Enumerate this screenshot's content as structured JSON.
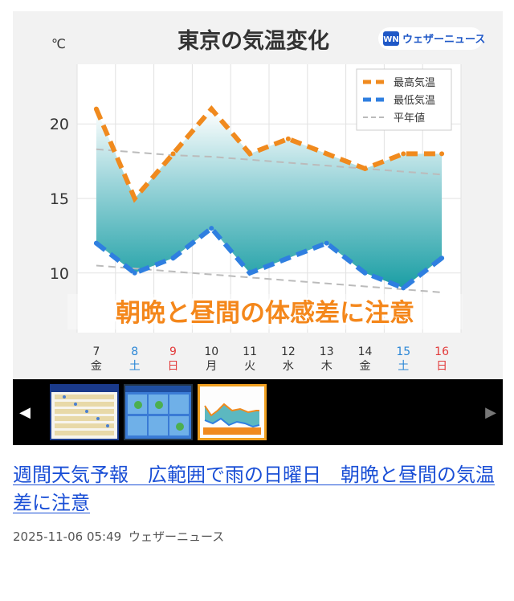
{
  "article": {
    "title": "週間天気予報　広範囲で雨の日曜日　朝晩と昼間の気温差に注意",
    "date": "2025-11-06 05:49",
    "source": "ウェザーニュース"
  },
  "gallery": {
    "prev_icon": "triangle-left",
    "next_icon": "triangle-right",
    "thumbnails": [
      {
        "name": "weekly-table"
      },
      {
        "name": "weather-maps"
      },
      {
        "name": "temperature-chart",
        "selected": true,
        "caption": "朝晩と昼間の体感差に注意"
      }
    ]
  },
  "chart_data": {
    "type": "line",
    "title": "東京の気温変化",
    "brand": "ウェザーニュース",
    "brand_logo": "WN",
    "ylabel": "℃",
    "ylim": [
      6,
      24
    ],
    "yticks": [
      10,
      15,
      20
    ],
    "banner": "朝晩と昼間の体感差に注意",
    "categories": [
      {
        "day": "7",
        "dow": "金",
        "color": "#333333"
      },
      {
        "day": "8",
        "dow": "土",
        "color": "#2a86d6"
      },
      {
        "day": "9",
        "dow": "日",
        "color": "#e23a3a"
      },
      {
        "day": "10",
        "dow": "月",
        "color": "#333333"
      },
      {
        "day": "11",
        "dow": "火",
        "color": "#333333"
      },
      {
        "day": "12",
        "dow": "水",
        "color": "#333333"
      },
      {
        "day": "13",
        "dow": "木",
        "color": "#333333"
      },
      {
        "day": "14",
        "dow": "金",
        "color": "#333333"
      },
      {
        "day": "15",
        "dow": "土",
        "color": "#2a86d6"
      },
      {
        "day": "16",
        "dow": "日",
        "color": "#e23a3a"
      }
    ],
    "series": [
      {
        "name": "最高気温",
        "color": "#f08a1e",
        "values": [
          21,
          15,
          18,
          21,
          18,
          19,
          18,
          17,
          18,
          18
        ]
      },
      {
        "name": "最低気温",
        "color": "#2f7fe0",
        "values": [
          12,
          10,
          11,
          13,
          10,
          11,
          12,
          10,
          9,
          11
        ]
      },
      {
        "name": "平年値",
        "color": "#bbbbbb",
        "values": [
          18.3,
          18.1,
          17.9,
          17.8,
          17.6,
          17.4,
          17.2,
          17.0,
          16.8,
          16.6
        ]
      },
      {
        "name": "",
        "color": "#bbbbbb",
        "values": [
          10.5,
          10.3,
          10.1,
          9.9,
          9.7,
          9.5,
          9.3,
          9.1,
          8.9,
          8.7
        ]
      }
    ],
    "legend_position": "top-right",
    "grid": true
  }
}
